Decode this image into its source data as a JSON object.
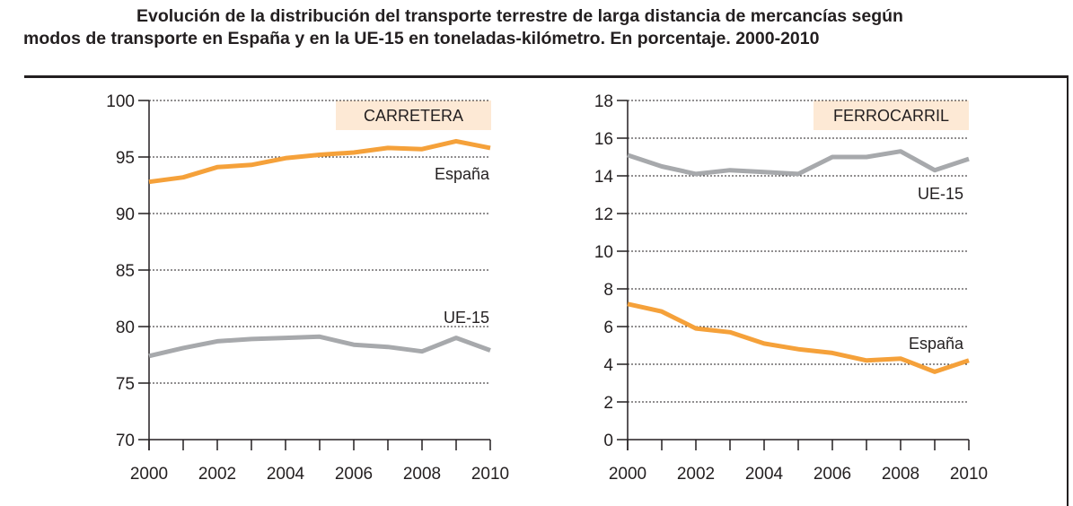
{
  "title": {
    "line1": "Evolución de la distribución del transporte terrestre de larga distancia de mercancías según",
    "line2": "modos de transporte en España y en la UE-15 en toneladas-kilómetro. En porcentaje. 2000-2010"
  },
  "colors": {
    "espana": "#f5a13a",
    "ue15": "#a7a9ac",
    "label_box": "#fde9d5",
    "axis": "#231f20"
  },
  "chart_data": [
    {
      "type": "line",
      "panel": "left",
      "title": "CARRETERA",
      "x": [
        2000,
        2001,
        2002,
        2003,
        2004,
        2005,
        2006,
        2007,
        2008,
        2009,
        2010
      ],
      "x_tick_labels": [
        "2000",
        "2002",
        "2004",
        "2006",
        "2008",
        "2010"
      ],
      "y_ticks": [
        70,
        75,
        80,
        85,
        90,
        95,
        100
      ],
      "ylim": [
        70,
        100
      ],
      "grid": "horizontal-dotted",
      "xlabel": "",
      "ylabel": "",
      "series": [
        {
          "name": "España",
          "color_key": "espana",
          "values": [
            92.8,
            93.2,
            94.1,
            94.3,
            94.9,
            95.2,
            95.4,
            95.8,
            95.7,
            96.4,
            95.8
          ]
        },
        {
          "name": "UE-15",
          "color_key": "ue15",
          "values": [
            77.4,
            78.1,
            78.7,
            78.9,
            79.0,
            79.1,
            78.4,
            78.2,
            77.8,
            79.0,
            77.9
          ]
        }
      ],
      "annotations": [
        {
          "text": "España",
          "series": "España",
          "position": "below-right"
        },
        {
          "text": "UE-15",
          "series": "UE-15",
          "position": "above-right"
        }
      ]
    },
    {
      "type": "line",
      "panel": "right",
      "title": "FERROCARRIL",
      "x": [
        2000,
        2001,
        2002,
        2003,
        2004,
        2005,
        2006,
        2007,
        2008,
        2009,
        2010
      ],
      "x_tick_labels": [
        "2000",
        "2002",
        "2004",
        "2006",
        "2008",
        "2010"
      ],
      "y_ticks": [
        0,
        2,
        4,
        6,
        8,
        10,
        12,
        14,
        16,
        18
      ],
      "ylim": [
        0,
        18
      ],
      "grid": "horizontal-dotted",
      "xlabel": "",
      "ylabel": "",
      "series": [
        {
          "name": "UE-15",
          "color_key": "ue15",
          "values": [
            15.1,
            14.5,
            14.1,
            14.3,
            14.2,
            14.1,
            15.0,
            15.0,
            15.3,
            14.3,
            14.9
          ]
        },
        {
          "name": "España",
          "color_key": "espana",
          "values": [
            7.2,
            6.8,
            5.9,
            5.7,
            5.1,
            4.8,
            4.6,
            4.2,
            4.3,
            3.6,
            4.2
          ]
        }
      ],
      "annotations": [
        {
          "text": "UE-15",
          "series": "UE-15",
          "position": "below-right"
        },
        {
          "text": "España",
          "series": "España",
          "position": "above-right"
        }
      ]
    }
  ]
}
